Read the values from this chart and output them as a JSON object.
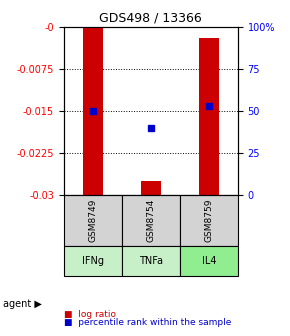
{
  "title": "GDS498 / 13366",
  "samples": [
    "GSM8749",
    "GSM8754",
    "GSM8759"
  ],
  "agents": [
    "IFNg",
    "TNFa",
    "IL4"
  ],
  "agent_colors": [
    "#c8f0c8",
    "#c8f0c8",
    "#90ee90"
  ],
  "sample_bg": "#d3d3d3",
  "ymin": -0.03,
  "ymax": 0.0,
  "yticks": [
    0,
    -0.0075,
    -0.015,
    -0.0225,
    -0.03
  ],
  "ytick_labels": [
    "-0",
    "-0.0075",
    "-0.015",
    "-0.0225",
    "-0.03"
  ],
  "right_yticks": [
    0,
    0.25,
    0.5,
    0.75,
    1.0
  ],
  "right_ytick_labels": [
    "0",
    "25",
    "50",
    "75",
    "100%"
  ],
  "bar_bottoms": [
    -0.03,
    -0.03,
    -0.03
  ],
  "bar_tops": [
    0.0,
    -0.0275,
    -0.002
  ],
  "bar_color": "#cc0000",
  "bar_width": 0.35,
  "percentile_values": [
    -0.015,
    -0.018,
    -0.014
  ],
  "percentile_color": "#0000cc",
  "legend_log_color": "#cc0000",
  "legend_pct_color": "#0000cc"
}
